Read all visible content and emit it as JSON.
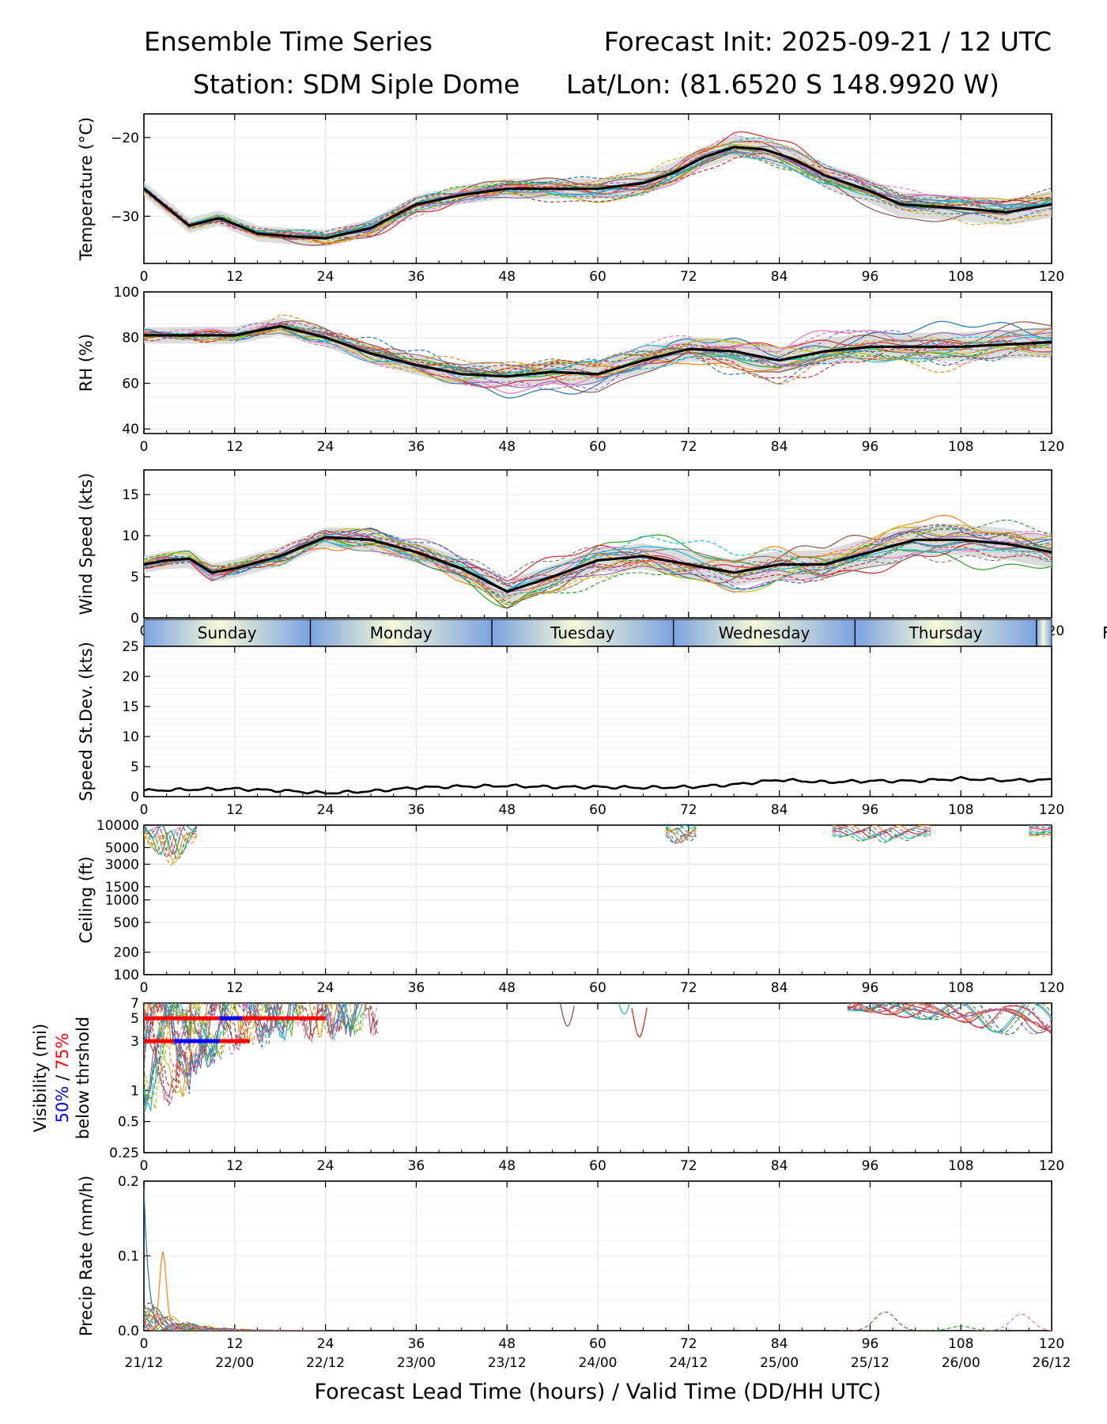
{
  "header": {
    "title_left": "Ensemble Time Series",
    "title_right": "Forecast Init: 2025-09-21 / 12 UTC",
    "station": "Station: SDM  Siple Dome",
    "latlon": "Lat/Lon: (81.6520 S 148.9920 W)"
  },
  "xlabel": "Forecast Lead Time (hours) / Valid Time (DD/HH UTC)",
  "x_ticks": [
    0,
    12,
    24,
    36,
    48,
    60,
    72,
    84,
    96,
    108,
    120
  ],
  "valid_time_labels": [
    "21/12",
    "22/00",
    "22/12",
    "23/00",
    "23/12",
    "24/00",
    "24/12",
    "25/00",
    "25/12",
    "26/00",
    "26/12"
  ],
  "days": [
    "Sunday",
    "Monday",
    "Tuesday",
    "Wednesday",
    "Thursday",
    "F"
  ],
  "colors": {
    "mean": "#000000",
    "spread": "#d0d0d0",
    "grid": "#e6e6e6",
    "threshold_50": "#0000ff",
    "threshold_75": "#ff0000",
    "day_band_light": "#f6f8d8",
    "day_band_blue": "#7ba3e0"
  },
  "member_colors": [
    "#1f77b4",
    "#ff7f0e",
    "#2ca02c",
    "#d62728",
    "#9467bd",
    "#8c564b",
    "#e377c2",
    "#7f7f7f",
    "#bcbd22",
    "#17becf"
  ],
  "vis_labels": {
    "prefix_50": "50%",
    "sep": " / ",
    "prefix_75": "75%",
    "line1": "Visibility (mi)",
    "line3": "below thrshold"
  },
  "chart_data": [
    {
      "type": "line",
      "ylabel": "Temperature (°C)",
      "ylim": [
        -36,
        -17
      ],
      "yticks": [
        -20,
        -30
      ],
      "x": [
        0,
        6,
        10,
        15,
        20,
        24,
        30,
        36,
        42,
        48,
        54,
        60,
        66,
        70,
        74,
        78,
        82,
        86,
        90,
        96,
        100,
        108,
        114,
        120
      ],
      "mean": [
        -26.5,
        -31.2,
        -30.2,
        -32.2,
        -32.6,
        -32.8,
        -31.5,
        -28.5,
        -27.3,
        -26.5,
        -26.5,
        -26.5,
        -25.8,
        -24.5,
        -22.5,
        -21.2,
        -21.5,
        -22.8,
        -24.8,
        -26.8,
        -28.5,
        -29.0,
        -29.5,
        -28.5
      ],
      "spread": 1.3,
      "amp": 1.8
    },
    {
      "type": "line",
      "ylabel": "RH (%)",
      "ylim": [
        38,
        100
      ],
      "yticks": [
        100,
        80,
        60,
        40
      ],
      "x": [
        0,
        6,
        12,
        18,
        24,
        30,
        36,
        42,
        48,
        54,
        60,
        66,
        72,
        78,
        84,
        90,
        96,
        102,
        108,
        114,
        120
      ],
      "mean": [
        81,
        81,
        81,
        85,
        80,
        73,
        68,
        64,
        63,
        65,
        64,
        70,
        75,
        74,
        70,
        74,
        76,
        76,
        76,
        77,
        78
      ],
      "spread": 5,
      "amp": 9
    },
    {
      "type": "line",
      "ylabel": "Wind Speed (kts)",
      "ylim": [
        0,
        18
      ],
      "yticks": [
        15,
        10,
        5,
        0
      ],
      "x": [
        0,
        3,
        6,
        9,
        12,
        18,
        24,
        30,
        36,
        42,
        48,
        54,
        60,
        66,
        72,
        78,
        84,
        90,
        96,
        102,
        108,
        114,
        120
      ],
      "mean": [
        6.5,
        7.0,
        7.2,
        5.5,
        6.0,
        7.5,
        9.8,
        9.5,
        8.0,
        6.0,
        3.2,
        5.0,
        7.0,
        7.5,
        6.5,
        5.5,
        6.5,
        6.5,
        8.0,
        9.5,
        9.5,
        9.0,
        8.0
      ],
      "spread": 1.5,
      "amp": 2.5
    },
    {
      "type": "line",
      "ylabel": "Speed St.Dev. (kts)",
      "ylim": [
        0,
        25
      ],
      "yticks": [
        25,
        20,
        15,
        10,
        5,
        0
      ],
      "x": [
        0,
        6,
        12,
        18,
        24,
        30,
        36,
        42,
        48,
        54,
        60,
        66,
        72,
        78,
        84,
        90,
        96,
        102,
        108,
        114,
        120
      ],
      "mean": [
        1.0,
        1.2,
        1.3,
        1.0,
        0.6,
        0.9,
        1.5,
        1.7,
        1.8,
        1.6,
        1.6,
        1.5,
        1.6,
        2.0,
        2.8,
        2.4,
        2.6,
        2.6,
        3.0,
        2.7,
        2.8
      ]
    },
    {
      "type": "line",
      "ylabel": "Ceiling (ft)",
      "scale": "log",
      "ylim": [
        100,
        10000
      ],
      "yticks": [
        10000,
        5000,
        3000,
        1500,
        1000,
        500,
        200,
        100
      ]
    },
    {
      "type": "line",
      "scale": "log",
      "ylim": [
        0.25,
        7
      ],
      "yticks": [
        7,
        5,
        3,
        1,
        0.5,
        0.25
      ],
      "threshold_bars": [
        {
          "level": 5,
          "x0": 0,
          "x1": 24,
          "color": "red",
          "blue_segment": [
            10,
            13
          ]
        },
        {
          "level": 3,
          "x0": 0,
          "x1": 14,
          "color": "red",
          "blue_segment": [
            4,
            10
          ]
        }
      ]
    },
    {
      "type": "line",
      "ylabel": "Precip Rate (mm/h)",
      "ylim": [
        0,
        0.2
      ],
      "yticks": [
        0.2,
        0.1,
        0.0
      ]
    }
  ]
}
